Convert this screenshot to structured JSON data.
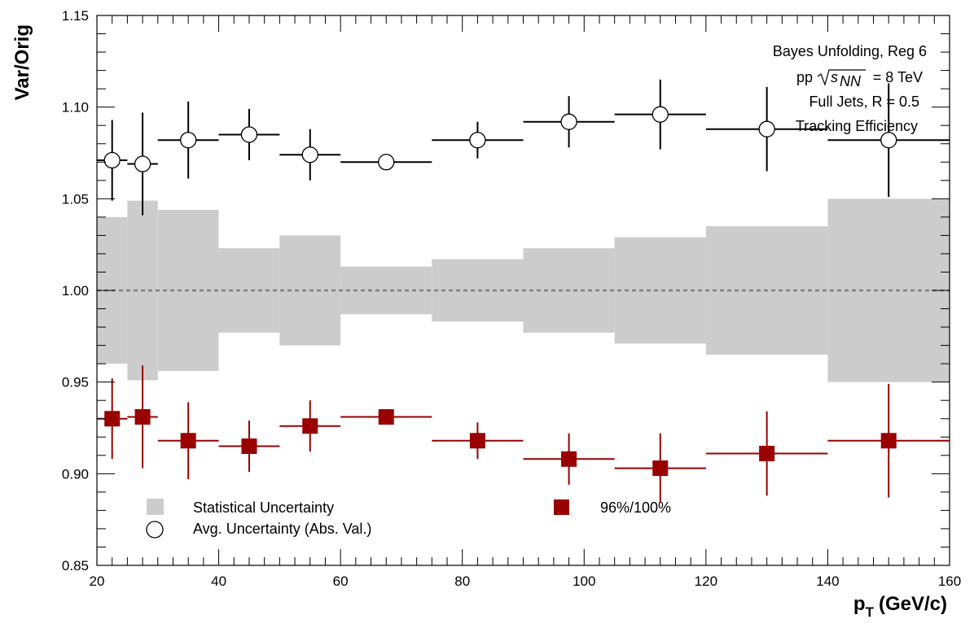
{
  "chart_data": {
    "type": "scatter",
    "title": "",
    "xlabel": "p",
    "xlabel_sub": "T",
    "xlabel_unit": "(GeV/c)",
    "ylabel": "Var/Orig",
    "xlim": [
      20,
      160
    ],
    "ylim": [
      0.85,
      1.15
    ],
    "x_ticks": [
      "20",
      "40",
      "60",
      "80",
      "100",
      "120",
      "140",
      "160"
    ],
    "y_ticks": [
      "0.85",
      "0.90",
      "0.95",
      "1.00",
      "1.05",
      "1.10",
      "1.15"
    ],
    "reference_line": 1.0,
    "annotations": [
      {
        "text": "Bayes Unfolding, Reg 6"
      },
      {
        "text_pre": "pp",
        "sqrt_arg": "s",
        "sqrt_sub": "NN",
        "text_post": "= 8 TeV"
      },
      {
        "text": "Full Jets, R = 0.5"
      },
      {
        "text": "Tracking Efficiency"
      }
    ],
    "bins": [
      {
        "lo": 20,
        "hi": 25,
        "x": 22.5
      },
      {
        "lo": 25,
        "hi": 30,
        "x": 27.5
      },
      {
        "lo": 30,
        "hi": 40,
        "x": 35
      },
      {
        "lo": 40,
        "hi": 50,
        "x": 45
      },
      {
        "lo": 50,
        "hi": 60,
        "x": 55
      },
      {
        "lo": 60,
        "hi": 75,
        "x": 67.5
      },
      {
        "lo": 75,
        "hi": 90,
        "x": 82.5
      },
      {
        "lo": 90,
        "hi": 105,
        "x": 97.5
      },
      {
        "lo": 105,
        "hi": 120,
        "x": 112.5
      },
      {
        "lo": 120,
        "hi": 140,
        "x": 130
      },
      {
        "lo": 140,
        "hi": 160,
        "x": 150
      }
    ],
    "series": [
      {
        "name": "Statistical Uncertainty",
        "kind": "band",
        "color": "#cccccc",
        "half_width": [
          0.04,
          0.049,
          0.044,
          0.023,
          0.03,
          0.013,
          0.017,
          0.023,
          0.029,
          0.035,
          0.05
        ]
      },
      {
        "name": "Avg. Uncertainty (Abs. Val.)",
        "kind": "open-circle",
        "color": "#000000",
        "values": [
          1.071,
          1.069,
          1.082,
          1.085,
          1.074,
          1.07,
          1.082,
          1.092,
          1.096,
          1.088,
          1.082
        ],
        "errors": [
          0.022,
          0.028,
          0.021,
          0.014,
          0.014,
          0.0,
          0.01,
          0.014,
          0.019,
          0.023,
          0.031
        ]
      },
      {
        "name": "96%/100%",
        "kind": "filled-square",
        "color": "#990000",
        "values": [
          0.93,
          0.931,
          0.918,
          0.915,
          0.926,
          0.931,
          0.918,
          0.908,
          0.903,
          0.911,
          0.918
        ],
        "errors": [
          0.022,
          0.028,
          0.021,
          0.014,
          0.014,
          0.0,
          0.01,
          0.014,
          0.019,
          0.023,
          0.031
        ]
      }
    ],
    "grid": false,
    "legend_position": "bottom-left"
  }
}
